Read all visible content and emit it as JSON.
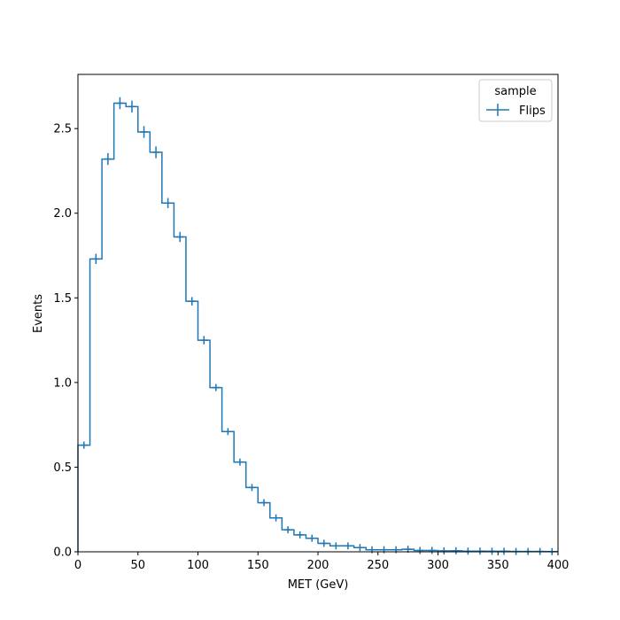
{
  "chart_data": {
    "type": "histogram-step",
    "xlabel": "MET (GeV)",
    "ylabel": "Events",
    "xlim": [
      0,
      400
    ],
    "ylim": [
      0,
      2.82
    ],
    "xticks": [
      0,
      50,
      100,
      150,
      200,
      250,
      300,
      350,
      400
    ],
    "yticks": [
      0.0,
      0.5,
      1.0,
      1.5,
      2.0,
      2.5
    ],
    "xtick_labels": [
      "0",
      "50",
      "100",
      "150",
      "200",
      "250",
      "300",
      "350",
      "400"
    ],
    "ytick_labels": [
      "0.0",
      "0.5",
      "1.0",
      "1.5",
      "2.0",
      "2.5"
    ],
    "grid": false,
    "legend": {
      "title": "sample",
      "placement": "top-right",
      "entries": [
        "Flips"
      ]
    },
    "series": [
      {
        "name": "Flips",
        "color": "#1f77b4",
        "bin_edges": [
          0,
          10,
          20,
          30,
          40,
          50,
          60,
          70,
          80,
          90,
          100,
          110,
          120,
          130,
          140,
          150,
          160,
          170,
          180,
          190,
          200,
          210,
          220,
          230,
          240,
          250,
          260,
          270,
          280,
          290,
          300,
          310,
          320,
          330,
          340,
          350,
          360,
          370,
          380,
          390,
          400
        ],
        "values": [
          0.63,
          1.73,
          2.32,
          2.65,
          2.63,
          2.48,
          2.36,
          2.06,
          1.86,
          1.48,
          1.25,
          0.97,
          0.71,
          0.53,
          0.38,
          0.29,
          0.2,
          0.13,
          0.1,
          0.08,
          0.05,
          0.035,
          0.035,
          0.025,
          0.012,
          0.012,
          0.012,
          0.015,
          0.008,
          0.008,
          0.005,
          0.006,
          0.004,
          0.004,
          0.003,
          0.003,
          0.002,
          0.002,
          0.002,
          0.001
        ],
        "errors": [
          0.02,
          0.03,
          0.035,
          0.035,
          0.035,
          0.035,
          0.035,
          0.03,
          0.03,
          0.025,
          0.025,
          0.02,
          0.02,
          0.015,
          0.015,
          0.012,
          0.01,
          0.008,
          0.007,
          0.006,
          0.005,
          0.004,
          0.004,
          0.003,
          0.002,
          0.002,
          0.002,
          0.003,
          0.002,
          0.002,
          0.001,
          0.002,
          0.001,
          0.001,
          0.001,
          0.001,
          0.001,
          0.001,
          0.001,
          0.001
        ]
      }
    ]
  }
}
